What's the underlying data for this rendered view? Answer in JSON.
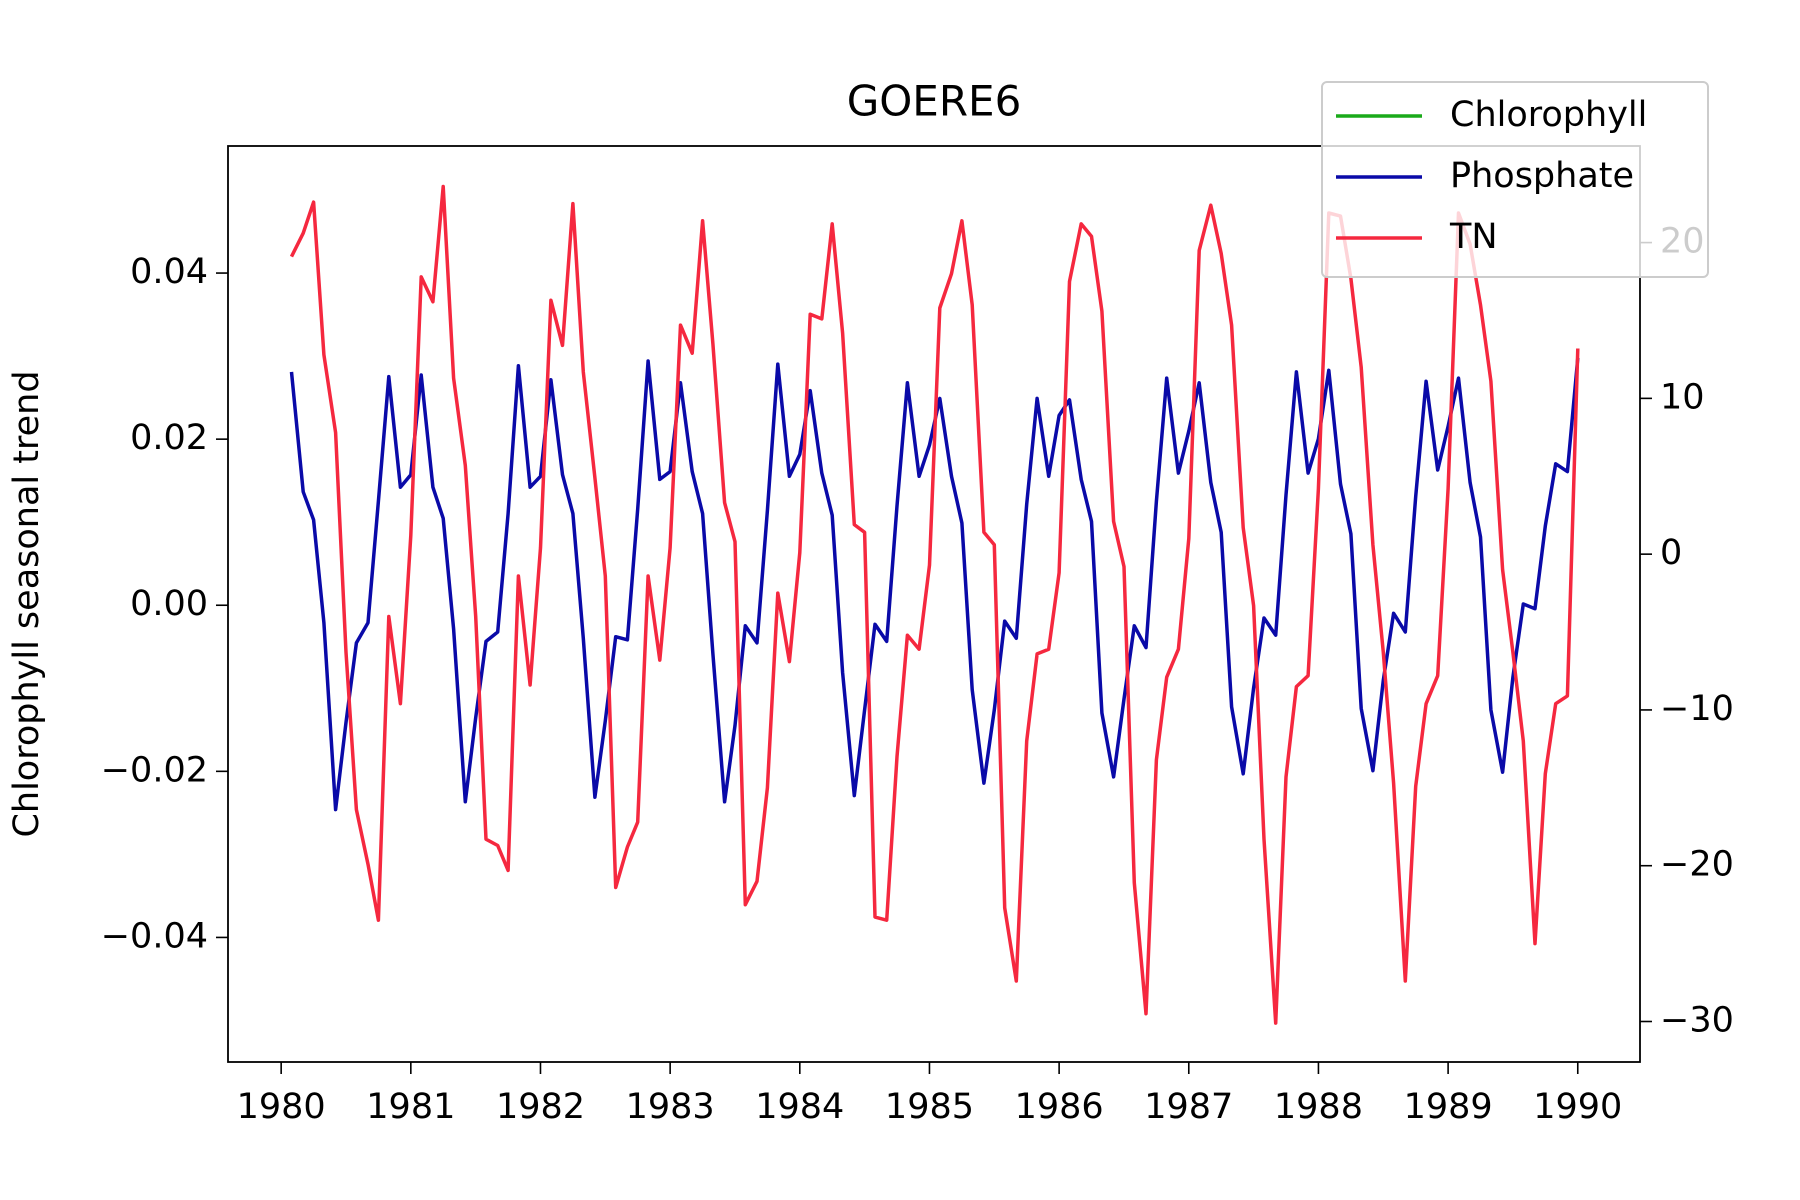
{
  "chart_data": {
    "type": "line",
    "title": "GOERE6",
    "ylabel": "Chlorophyll seasonal trend",
    "x": [
      1980.08,
      1980.17,
      1980.25,
      1980.33,
      1980.42,
      1980.5,
      1980.58,
      1980.67,
      1980.75,
      1980.83,
      1980.92,
      1981,
      1981.08,
      1981.17,
      1981.25,
      1981.33,
      1981.42,
      1981.5,
      1981.58,
      1981.67,
      1981.75,
      1981.83,
      1981.92,
      1982,
      1982.08,
      1982.17,
      1982.25,
      1982.33,
      1982.42,
      1982.5,
      1982.58,
      1982.67,
      1982.75,
      1982.83,
      1982.92,
      1983,
      1983.08,
      1983.17,
      1983.25,
      1983.33,
      1983.42,
      1983.5,
      1983.58,
      1983.67,
      1983.75,
      1983.83,
      1983.92,
      1984,
      1984.08,
      1984.17,
      1984.25,
      1984.33,
      1984.42,
      1984.5,
      1984.58,
      1984.67,
      1984.75,
      1984.83,
      1984.92,
      1985,
      1985.08,
      1985.17,
      1985.25,
      1985.33,
      1985.42,
      1985.5,
      1985.58,
      1985.67,
      1985.75,
      1985.83,
      1985.92,
      1986,
      1986.08,
      1986.17,
      1986.25,
      1986.33,
      1986.42,
      1986.5,
      1986.58,
      1986.67,
      1986.75,
      1986.83,
      1986.92,
      1987,
      1987.08,
      1987.17,
      1987.25,
      1987.33,
      1987.42,
      1987.5,
      1987.58,
      1987.67,
      1987.75,
      1987.83,
      1987.92,
      1988,
      1988.08,
      1988.17,
      1988.25,
      1988.33,
      1988.42,
      1988.5,
      1988.58,
      1988.67,
      1988.75,
      1988.83,
      1988.92,
      1989,
      1989.08,
      1989.17,
      1989.25,
      1989.33,
      1989.42,
      1989.5,
      1989.58,
      1989.67,
      1989.75,
      1989.83,
      1989.92,
      1990
    ],
    "series": [
      {
        "name": "Chlorophyll",
        "color": "#1aaa1a",
        "axis": "y",
        "values": [
          null,
          null,
          null,
          null,
          null,
          null,
          null,
          null,
          null,
          null,
          null,
          null,
          null,
          null,
          null,
          null,
          null,
          null,
          null,
          null,
          null,
          null,
          null,
          null,
          null,
          null,
          null,
          null,
          null,
          null,
          null,
          null,
          null,
          null,
          null,
          null,
          null,
          null,
          null,
          null,
          null,
          null,
          null,
          null,
          null,
          null,
          null,
          null,
          null,
          null,
          null,
          null,
          null,
          null,
          null,
          null,
          null,
          null,
          null,
          null,
          null,
          null,
          null,
          null,
          null,
          null,
          null,
          null,
          null,
          null,
          null,
          null,
          null,
          null,
          null,
          null,
          null,
          null,
          null,
          null,
          null,
          null,
          null,
          null,
          null,
          null,
          null,
          null,
          null,
          null,
          null,
          null,
          null,
          null,
          null,
          null,
          null,
          null,
          null,
          null,
          null,
          null,
          null,
          null,
          null,
          null,
          null,
          null,
          null,
          null,
          null,
          null,
          null,
          null,
          null,
          null,
          null,
          null,
          null,
          null
        ]
      },
      {
        "name": "Phosphate",
        "color": "#0a0aa8",
        "axis": "y2",
        "values": [
          11.7,
          4.0,
          2.2,
          -4.4,
          -16.4,
          -10.8,
          -5.7,
          -4.4,
          3.4,
          11.4,
          4.3,
          5.1,
          11.5,
          4.3,
          2.3,
          -4.8,
          -15.9,
          -10.5,
          -5.6,
          -5.0,
          2.6,
          12.1,
          4.3,
          5.0,
          11.2,
          5.1,
          2.6,
          -5.4,
          -15.6,
          -10.7,
          -5.3,
          -5.5,
          2.9,
          12.4,
          4.8,
          5.3,
          11.0,
          5.3,
          2.6,
          -6.4,
          -15.9,
          -11.0,
          -4.6,
          -5.7,
          2.8,
          12.2,
          5.0,
          6.4,
          10.5,
          5.2,
          2.5,
          -7.6,
          -15.5,
          -10.0,
          -4.5,
          -5.6,
          3.1,
          11.0,
          5.0,
          7.0,
          10.0,
          5.0,
          2.0,
          -8.7,
          -14.7,
          -10.0,
          -4.3,
          -5.4,
          3.2,
          10.0,
          5.0,
          8.9,
          9.9,
          4.8,
          2.1,
          -10.2,
          -14.3,
          -9.3,
          -4.6,
          -6.0,
          3.4,
          11.3,
          5.2,
          7.9,
          11.0,
          4.6,
          1.4,
          -9.8,
          -14.1,
          -8.6,
          -4.1,
          -5.2,
          3.8,
          11.7,
          5.2,
          7.4,
          11.8,
          4.5,
          1.3,
          -9.9,
          -13.9,
          -8.1,
          -3.8,
          -5.0,
          3.7,
          11.1,
          5.4,
          8.2,
          11.3,
          4.6,
          1.1,
          -10.0,
          -14.0,
          -7.9,
          -3.2,
          -3.5,
          1.8,
          5.8,
          5.3,
          12.6
        ]
      },
      {
        "name": "TN",
        "color": "#f5283f",
        "axis": "y2",
        "values": [
          19.1,
          20.6,
          22.6,
          12.8,
          7.8,
          -6.3,
          -16.4,
          -19.9,
          -23.5,
          -4.0,
          -9.6,
          1.2,
          17.8,
          16.2,
          23.6,
          11.3,
          5.7,
          -4.0,
          -18.3,
          -18.7,
          -20.3,
          -1.4,
          -8.4,
          0.4,
          16.3,
          13.4,
          22.5,
          11.7,
          4.9,
          -1.4,
          -21.4,
          -18.8,
          -17.2,
          -1.4,
          -6.8,
          0.4,
          14.7,
          12.9,
          21.4,
          13.5,
          3.3,
          0.8,
          -22.5,
          -21.0,
          -15.0,
          -2.5,
          -6.9,
          0.1,
          15.4,
          15.1,
          21.2,
          14.2,
          1.9,
          1.4,
          -23.3,
          -23.5,
          -13.0,
          -5.2,
          -6.1,
          -0.7,
          15.8,
          18.0,
          21.4,
          16.0,
          1.4,
          0.6,
          -22.7,
          -27.4,
          -12.0,
          -6.4,
          -6.1,
          -1.2,
          17.5,
          21.2,
          20.4,
          15.6,
          2.1,
          -0.8,
          -21.1,
          -29.5,
          -13.2,
          -7.9,
          -6.1,
          1.0,
          19.5,
          22.4,
          19.3,
          14.7,
          1.7,
          -3.3,
          -18.3,
          -30.1,
          -14.3,
          -8.5,
          -7.8,
          4.2,
          21.9,
          21.7,
          17.7,
          12.0,
          0.6,
          -6.3,
          -14.7,
          -27.4,
          -14.9,
          -9.6,
          -7.8,
          4.2,
          21.9,
          19.9,
          16.0,
          11.1,
          -1.0,
          -6.3,
          -12.0,
          -25.0,
          -14.1,
          -9.6,
          -9.1,
          13.2
        ]
      }
    ],
    "xlim": [
      1979.59,
      1990.48
    ],
    "xticks": [
      1980,
      1981,
      1982,
      1983,
      1984,
      1985,
      1986,
      1987,
      1988,
      1989,
      1990
    ],
    "ylim": [
      -0.055,
      0.0553
    ],
    "yticks": [
      {
        "value": -0.04,
        "label": "−0.04"
      },
      {
        "value": -0.02,
        "label": "−0.02"
      },
      {
        "value": 0,
        "label": "0.00"
      },
      {
        "value": 0.02,
        "label": "0.02"
      },
      {
        "value": 0.04,
        "label": "0.04"
      }
    ],
    "y2lim": [
      -32.6,
      26.2
    ],
    "y2ticks": [
      {
        "value": -30,
        "label": "−30"
      },
      {
        "value": -20,
        "label": "−20"
      },
      {
        "value": -10,
        "label": "−10"
      },
      0,
      10,
      20
    ],
    "legend": "upper right"
  }
}
